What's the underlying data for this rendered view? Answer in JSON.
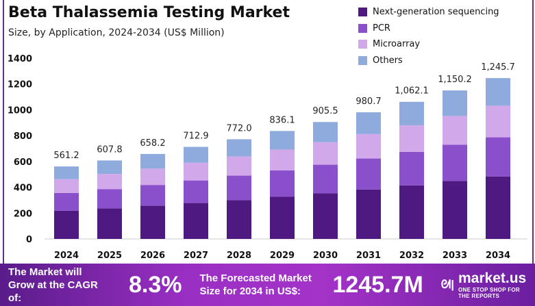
{
  "chart_data": {
    "type": "bar",
    "stacked": true,
    "title": "Beta Thalassemia Testing Market",
    "subtitle": "Size, by Application, 2024-2034 (US$ Million)",
    "categories": [
      "2024",
      "2025",
      "2026",
      "2027",
      "2028",
      "2029",
      "2030",
      "2031",
      "2032",
      "2033",
      "2034"
    ],
    "totals": [
      "561.2",
      "607.8",
      "658.2",
      "712.9",
      "772.0",
      "836.1",
      "905.5",
      "980.7",
      "1,062.1",
      "1,150.2",
      "1,245.7"
    ],
    "series": [
      {
        "name": "Next-generation sequencing",
        "color": "#4e1a82",
        "values": [
          218,
          237,
          256.7,
          278,
          301.1,
          326.1,
          353.1,
          382.5,
          414.2,
          448.6,
          484
        ]
      },
      {
        "name": "PCR",
        "color": "#8a4fcb",
        "values": [
          138,
          148.9,
          161.3,
          174.7,
          189.1,
          204.8,
          221.8,
          240.3,
          260.2,
          281.8,
          303
        ]
      },
      {
        "name": "Microarray",
        "color": "#d1a8ea",
        "values": [
          107,
          117.3,
          127,
          137.6,
          149,
          161.4,
          174.8,
          189.3,
          205,
          222,
          245
        ]
      },
      {
        "name": "Others",
        "color": "#8faadc",
        "values": [
          98.2,
          104.6,
          113.2,
          122.6,
          132.8,
          143.8,
          155.8,
          168.6,
          182.7,
          197.8,
          213.7
        ]
      }
    ],
    "yticks": [
      "0",
      "200",
      "400",
      "600",
      "800",
      "1000",
      "1200",
      "1400"
    ],
    "ylim": [
      0,
      1400
    ],
    "grid": false,
    "legend": "top-right"
  },
  "banner": {
    "cagr_text": "The Market will Grow at the CAGR of:",
    "cagr": "8.3%",
    "forecast_text": "The Forecasted Market Size for 2034 in US$:",
    "forecast": "1245.7M",
    "brand": "market.us",
    "tagline": "ONE STOP SHOP FOR THE REPORTS"
  }
}
